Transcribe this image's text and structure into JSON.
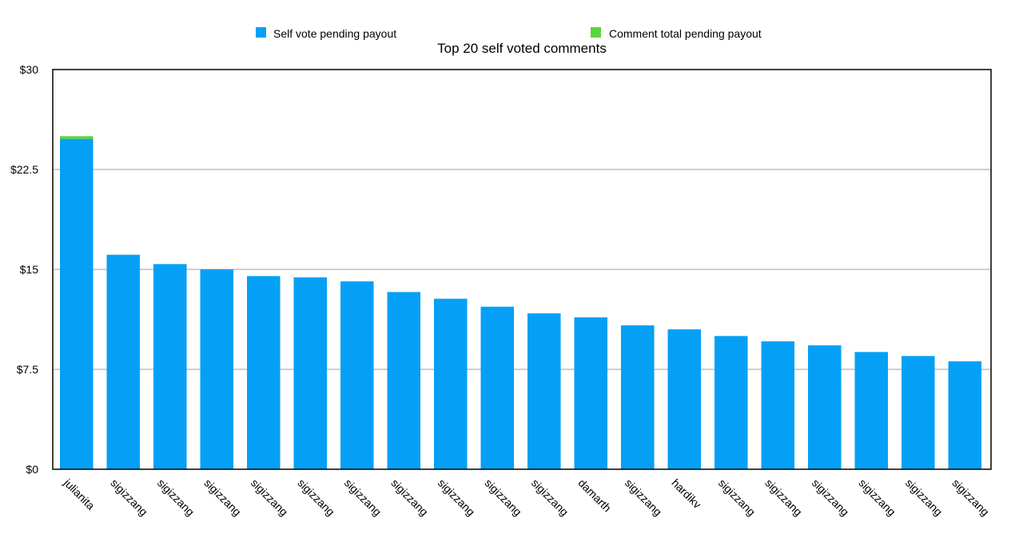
{
  "chart_data": {
    "type": "bar",
    "stacked": true,
    "title": "Top 20 self voted comments",
    "xlabel": "",
    "ylabel": "",
    "ylim": [
      0,
      30
    ],
    "yticks": [
      0,
      7.5,
      15,
      22.5,
      30
    ],
    "ytick_labels": [
      "$0",
      "$7.5",
      "$15",
      "$22.5",
      "$30"
    ],
    "grid": true,
    "legend_position": "top",
    "categories": [
      "julianita",
      "sigizzang",
      "sigizzang",
      "sigizzang",
      "sigizzang",
      "sigizzang",
      "sigizzang",
      "sigizzang",
      "sigizzang",
      "sigizzang",
      "sigizzang",
      "damarth",
      "sigizzang",
      "hardikv",
      "sigizzang",
      "sigizzang",
      "sigizzang",
      "sigizzang",
      "sigizzang",
      "sigizzang"
    ],
    "series": [
      {
        "name": "Self vote pending payout",
        "color": "#05a0f5",
        "values": [
          24.8,
          16.1,
          15.4,
          15.0,
          14.5,
          14.4,
          14.1,
          13.3,
          12.8,
          12.2,
          11.7,
          11.4,
          10.8,
          10.5,
          10.0,
          9.6,
          9.3,
          8.8,
          8.5,
          8.1
        ]
      },
      {
        "name": "Comment total pending payout",
        "color": "#5cd43c",
        "values": [
          0.2,
          0,
          0,
          0,
          0,
          0,
          0,
          0,
          0,
          0,
          0,
          0,
          0,
          0,
          0,
          0,
          0,
          0,
          0,
          0
        ]
      }
    ]
  }
}
